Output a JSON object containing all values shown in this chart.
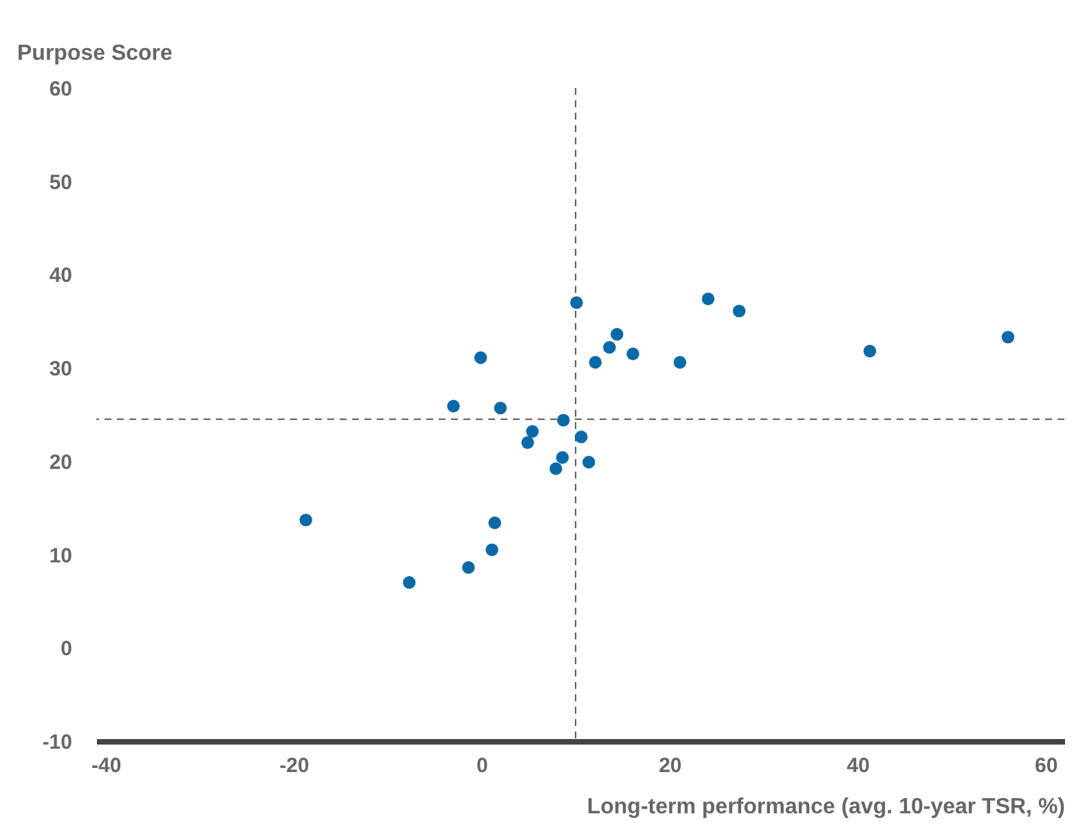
{
  "chart_data": {
    "type": "scatter",
    "xlabel": "Long-term performance (avg. 10-year TSR, %)",
    "ylabel": "Purpose Score",
    "xlim": [
      -41,
      62
    ],
    "xticks": [
      -40,
      -20,
      0,
      20,
      40,
      60
    ],
    "ylim": [
      -10,
      60
    ],
    "yticks": [
      -10,
      0,
      10,
      20,
      30,
      40,
      50,
      60
    ],
    "marker": "circle",
    "ref_lines": [
      {
        "axis": "x",
        "value": 10,
        "color": "#555555",
        "line_style": "dashed"
      },
      {
        "axis": "y",
        "value": 24.5,
        "color": "#555555",
        "line_style": "dashed"
      }
    ],
    "series": [
      {
        "color": "#0a6aa8",
        "x": [
          10.1,
          14.4,
          13.6,
          12.1,
          16.1,
          -0.1,
          -3,
          2,
          8.7,
          5.4,
          4.9,
          10.6,
          8.6,
          7.9,
          11.4,
          -18.7,
          1.4,
          1.1,
          -1.4,
          -7.7,
          24.1,
          27.4,
          21.1,
          41.3,
          56
        ],
        "values": [
          37,
          33.6,
          32.2,
          30.6,
          31.5,
          31.1,
          25.9,
          25.7,
          24.4,
          23.2,
          22,
          22.6,
          20.4,
          19.2,
          19.9,
          13.7,
          13.4,
          10.5,
          8.6,
          7,
          37.4,
          36.1,
          30.6,
          31.8,
          33.3
        ]
      }
    ]
  }
}
